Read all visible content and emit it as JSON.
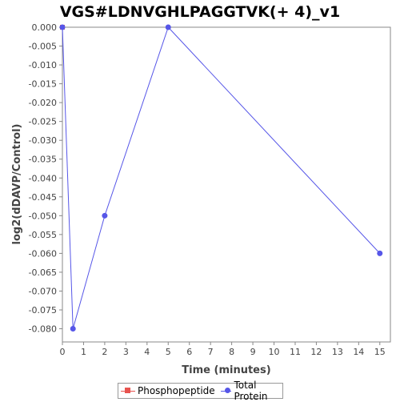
{
  "chart_data": {
    "type": "line",
    "title": "VGS#LDNVGHLPAGGTVK(+ 4)_v1",
    "xlabel": "Time (minutes)",
    "ylabel": "log2(dDAVP/Control)",
    "xlim": [
      0,
      15.5
    ],
    "ylim": [
      -0.0835,
      0
    ],
    "x_ticks": [
      0,
      1,
      2,
      3,
      4,
      5,
      6,
      7,
      8,
      9,
      10,
      11,
      12,
      13,
      14,
      15
    ],
    "y_ticks": [
      0.0,
      -0.005,
      -0.01,
      -0.015,
      -0.02,
      -0.025,
      -0.03,
      -0.035,
      -0.04,
      -0.045,
      -0.05,
      -0.055,
      -0.06,
      -0.065,
      -0.07,
      -0.075,
      -0.08
    ],
    "y_tick_labels": [
      "0.000",
      "-0.005",
      "-0.010",
      "-0.015",
      "-0.020",
      "-0.025",
      "-0.030",
      "-0.035",
      "-0.040",
      "-0.045",
      "-0.050",
      "-0.055",
      "-0.060",
      "-0.065",
      "-0.070",
      "-0.075",
      "-0.080"
    ],
    "grid": false,
    "legend_position": "bottom",
    "series": [
      {
        "name": "Phosphopeptide",
        "color": "#e8534f",
        "marker": "square",
        "x": [
          0
        ],
        "y": [
          0.0
        ]
      },
      {
        "name": "Total Protein",
        "color": "#5656e8",
        "marker": "circle",
        "x": [
          0,
          0.5,
          2,
          5,
          15
        ],
        "y": [
          0.0,
          -0.08,
          -0.05,
          0.0,
          -0.06
        ]
      }
    ]
  }
}
